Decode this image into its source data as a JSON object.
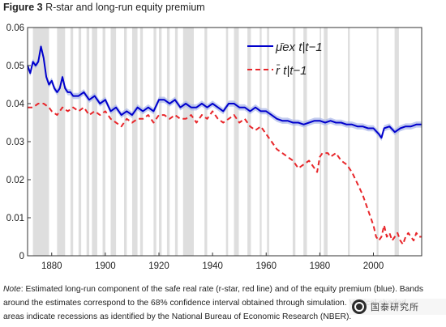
{
  "figure": {
    "label": "Figure 3",
    "title": "R-star and long-run equity premium"
  },
  "note": {
    "label": "Note",
    "text": ":  Estimated long-run component of the safe real rate (r-star, red line) and of the equity premium (blue).  Bands around the estimates correspond to the 68% confidence interval obtained through simulation. Vertical shaded areas indicate recessions as identified by the National Bureau of Economic Research (NBER)."
  },
  "watermark": {
    "text": "国泰研究所"
  },
  "chart_data": {
    "type": "line",
    "title": "",
    "xlabel": "",
    "ylabel": "",
    "xlim": [
      1871,
      2018
    ],
    "ylim": [
      0,
      0.06
    ],
    "xticks": [
      1880,
      1900,
      1920,
      1940,
      1960,
      1980,
      2000
    ],
    "yticks": [
      0,
      0.01,
      0.02,
      0.03,
      0.04,
      0.05,
      0.06
    ],
    "ytick_labels": [
      "0",
      "0.01",
      "0.02",
      "0.03",
      "0.04",
      "0.05",
      "0.06"
    ],
    "grid": false,
    "legend_position": "top-right",
    "recessions": [
      [
        1873,
        1879
      ],
      [
        1882,
        1885
      ],
      [
        1887,
        1888
      ],
      [
        1890,
        1891
      ],
      [
        1893,
        1894
      ],
      [
        1895,
        1897
      ],
      [
        1899,
        1900
      ],
      [
        1902,
        1904
      ],
      [
        1907,
        1908
      ],
      [
        1910,
        1912
      ],
      [
        1913,
        1914
      ],
      [
        1918,
        1919
      ],
      [
        1920,
        1921
      ],
      [
        1923,
        1924
      ],
      [
        1926,
        1927
      ],
      [
        1929,
        1933
      ],
      [
        1937,
        1938
      ],
      [
        1945,
        1945.8
      ],
      [
        1948,
        1949.8
      ],
      [
        1953,
        1954.3
      ],
      [
        1957.6,
        1958.3
      ],
      [
        1960.3,
        1961.1
      ],
      [
        1969.9,
        1970.9
      ],
      [
        1973.9,
        1975.2
      ],
      [
        1980,
        1980.5
      ],
      [
        1981.5,
        1982.9
      ],
      [
        1990.5,
        1991.2
      ],
      [
        2001.2,
        2001.9
      ],
      [
        2007.9,
        2009.5
      ]
    ],
    "series": [
      {
        "name": "μ̄ex t|t−1",
        "color": "#0000cc",
        "style": "solid",
        "band": 0.0008,
        "x": [
          1871,
          1872,
          1873,
          1874,
          1875,
          1876,
          1877,
          1878,
          1879,
          1880,
          1881,
          1882,
          1883,
          1884,
          1885,
          1886,
          1887,
          1888,
          1890,
          1892,
          1894,
          1896,
          1898,
          1900,
          1902,
          1904,
          1906,
          1908,
          1910,
          1912,
          1914,
          1916,
          1918,
          1920,
          1922,
          1924,
          1926,
          1928,
          1930,
          1932,
          1934,
          1936,
          1938,
          1940,
          1942,
          1944,
          1946,
          1948,
          1950,
          1952,
          1954,
          1956,
          1958,
          1960,
          1962,
          1964,
          1966,
          1968,
          1970,
          1972,
          1974,
          1976,
          1978,
          1980,
          1982,
          1984,
          1986,
          1988,
          1990,
          1992,
          1994,
          1996,
          1998,
          2000,
          2002,
          2003,
          2004,
          2006,
          2008,
          2010,
          2012,
          2014,
          2016,
          2018
        ],
        "y": [
          0.05,
          0.048,
          0.051,
          0.05,
          0.051,
          0.055,
          0.052,
          0.047,
          0.045,
          0.046,
          0.044,
          0.043,
          0.044,
          0.047,
          0.044,
          0.043,
          0.043,
          0.042,
          0.042,
          0.043,
          0.041,
          0.042,
          0.04,
          0.041,
          0.038,
          0.039,
          0.037,
          0.038,
          0.037,
          0.039,
          0.038,
          0.039,
          0.038,
          0.041,
          0.041,
          0.04,
          0.041,
          0.039,
          0.04,
          0.039,
          0.039,
          0.04,
          0.039,
          0.04,
          0.039,
          0.038,
          0.04,
          0.04,
          0.039,
          0.039,
          0.038,
          0.039,
          0.038,
          0.038,
          0.037,
          0.036,
          0.0355,
          0.0355,
          0.035,
          0.035,
          0.0345,
          0.035,
          0.0355,
          0.0355,
          0.035,
          0.0355,
          0.035,
          0.035,
          0.0345,
          0.0345,
          0.034,
          0.034,
          0.0335,
          0.0335,
          0.032,
          0.031,
          0.0335,
          0.034,
          0.0325,
          0.0335,
          0.034,
          0.034,
          0.0345,
          0.0345
        ]
      },
      {
        "name": "r̄ t|t−1",
        "color": "#e8262a",
        "style": "dashed",
        "x": [
          1871,
          1873,
          1875,
          1877,
          1879,
          1880,
          1882,
          1884,
          1886,
          1888,
          1890,
          1892,
          1894,
          1896,
          1898,
          1900,
          1902,
          1904,
          1906,
          1908,
          1910,
          1912,
          1914,
          1916,
          1918,
          1920,
          1922,
          1924,
          1926,
          1928,
          1930,
          1932,
          1934,
          1936,
          1938,
          1940,
          1942,
          1944,
          1946,
          1948,
          1950,
          1952,
          1954,
          1956,
          1958,
          1960,
          1962,
          1964,
          1966,
          1968,
          1970,
          1972,
          1974,
          1976,
          1978,
          1979,
          1980,
          1981,
          1982,
          1983,
          1984,
          1986,
          1988,
          1990,
          1992,
          1994,
          1996,
          1998,
          2000,
          2001,
          2002,
          2003,
          2004,
          2005,
          2006,
          2007,
          2008,
          2009,
          2010,
          2011,
          2012,
          2013,
          2014,
          2015,
          2016,
          2017,
          2018
        ],
        "y": [
          0.039,
          0.039,
          0.04,
          0.04,
          0.039,
          0.038,
          0.037,
          0.039,
          0.038,
          0.039,
          0.038,
          0.039,
          0.037,
          0.038,
          0.037,
          0.038,
          0.036,
          0.035,
          0.034,
          0.036,
          0.035,
          0.036,
          0.036,
          0.037,
          0.035,
          0.037,
          0.037,
          0.036,
          0.037,
          0.036,
          0.036,
          0.037,
          0.035,
          0.037,
          0.036,
          0.038,
          0.036,
          0.035,
          0.036,
          0.037,
          0.035,
          0.036,
          0.034,
          0.033,
          0.034,
          0.032,
          0.03,
          0.028,
          0.027,
          0.026,
          0.025,
          0.023,
          0.024,
          0.025,
          0.023,
          0.022,
          0.026,
          0.027,
          0.027,
          0.027,
          0.026,
          0.027,
          0.025,
          0.024,
          0.022,
          0.019,
          0.016,
          0.012,
          0.008,
          0.005,
          0.004,
          0.005,
          0.008,
          0.005,
          0.006,
          0.004,
          0.005,
          0.006,
          0.004,
          0.003,
          0.005,
          0.006,
          0.005,
          0.004,
          0.006,
          0.005,
          0.005
        ]
      }
    ]
  }
}
